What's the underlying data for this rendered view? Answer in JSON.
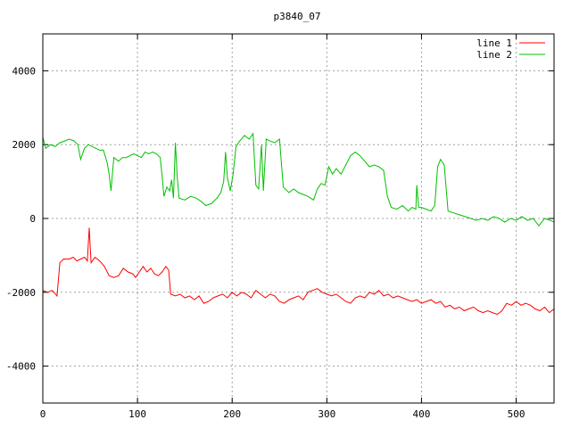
{
  "chart_data": {
    "type": "line",
    "title": "p3840_07",
    "xlabel": "",
    "ylabel": "",
    "xlim": [
      0,
      540
    ],
    "ylim": [
      -5000,
      5000
    ],
    "x_ticks": [
      0,
      100,
      200,
      300,
      400,
      500
    ],
    "y_ticks": [
      -4000,
      -2000,
      0,
      2000,
      4000
    ],
    "grid": true,
    "legend_position": "top-right",
    "series": [
      {
        "name": "line 1",
        "color": "#ff0000",
        "points": [
          [
            0,
            -1950
          ],
          [
            5,
            -2000
          ],
          [
            10,
            -1950
          ],
          [
            15,
            -2100
          ],
          [
            18,
            -1200
          ],
          [
            22,
            -1100
          ],
          [
            28,
            -1100
          ],
          [
            32,
            -1050
          ],
          [
            36,
            -1150
          ],
          [
            40,
            -1100
          ],
          [
            44,
            -1050
          ],
          [
            47,
            -1150
          ],
          [
            49,
            -250
          ],
          [
            51,
            -1200
          ],
          [
            55,
            -1050
          ],
          [
            60,
            -1150
          ],
          [
            65,
            -1300
          ],
          [
            70,
            -1550
          ],
          [
            75,
            -1600
          ],
          [
            80,
            -1550
          ],
          [
            85,
            -1350
          ],
          [
            90,
            -1450
          ],
          [
            95,
            -1500
          ],
          [
            98,
            -1600
          ],
          [
            102,
            -1450
          ],
          [
            106,
            -1300
          ],
          [
            110,
            -1450
          ],
          [
            114,
            -1350
          ],
          [
            118,
            -1500
          ],
          [
            122,
            -1550
          ],
          [
            126,
            -1450
          ],
          [
            130,
            -1300
          ],
          [
            133,
            -1400
          ],
          [
            135,
            -2050
          ],
          [
            140,
            -2100
          ],
          [
            145,
            -2050
          ],
          [
            150,
            -2150
          ],
          [
            155,
            -2100
          ],
          [
            160,
            -2200
          ],
          [
            165,
            -2100
          ],
          [
            170,
            -2300
          ],
          [
            175,
            -2250
          ],
          [
            180,
            -2150
          ],
          [
            185,
            -2100
          ],
          [
            190,
            -2050
          ],
          [
            195,
            -2150
          ],
          [
            200,
            -2000
          ],
          [
            205,
            -2100
          ],
          [
            210,
            -2000
          ],
          [
            215,
            -2050
          ],
          [
            220,
            -2150
          ],
          [
            225,
            -1950
          ],
          [
            230,
            -2050
          ],
          [
            235,
            -2150
          ],
          [
            240,
            -2050
          ],
          [
            245,
            -2100
          ],
          [
            250,
            -2250
          ],
          [
            255,
            -2300
          ],
          [
            260,
            -2200
          ],
          [
            265,
            -2150
          ],
          [
            270,
            -2100
          ],
          [
            275,
            -2200
          ],
          [
            280,
            -2000
          ],
          [
            285,
            -1950
          ],
          [
            290,
            -1900
          ],
          [
            295,
            -2000
          ],
          [
            300,
            -2050
          ],
          [
            305,
            -2100
          ],
          [
            310,
            -2050
          ],
          [
            315,
            -2150
          ],
          [
            320,
            -2250
          ],
          [
            325,
            -2300
          ],
          [
            330,
            -2150
          ],
          [
            335,
            -2100
          ],
          [
            340,
            -2150
          ],
          [
            345,
            -2000
          ],
          [
            350,
            -2050
          ],
          [
            355,
            -1950
          ],
          [
            360,
            -2100
          ],
          [
            365,
            -2050
          ],
          [
            370,
            -2150
          ],
          [
            375,
            -2100
          ],
          [
            380,
            -2150
          ],
          [
            385,
            -2200
          ],
          [
            390,
            -2250
          ],
          [
            395,
            -2200
          ],
          [
            400,
            -2300
          ],
          [
            405,
            -2250
          ],
          [
            410,
            -2200
          ],
          [
            415,
            -2300
          ],
          [
            420,
            -2250
          ],
          [
            425,
            -2400
          ],
          [
            430,
            -2350
          ],
          [
            435,
            -2450
          ],
          [
            440,
            -2400
          ],
          [
            445,
            -2500
          ],
          [
            450,
            -2450
          ],
          [
            455,
            -2400
          ],
          [
            460,
            -2500
          ],
          [
            465,
            -2550
          ],
          [
            470,
            -2500
          ],
          [
            475,
            -2550
          ],
          [
            480,
            -2600
          ],
          [
            485,
            -2500
          ],
          [
            490,
            -2300
          ],
          [
            495,
            -2350
          ],
          [
            500,
            -2250
          ],
          [
            505,
            -2350
          ],
          [
            510,
            -2300
          ],
          [
            515,
            -2350
          ],
          [
            520,
            -2450
          ],
          [
            525,
            -2500
          ],
          [
            530,
            -2400
          ],
          [
            535,
            -2550
          ],
          [
            540,
            -2450
          ]
        ]
      },
      {
        "name": "line 2",
        "color": "#00c000",
        "points": [
          [
            0,
            2200
          ],
          [
            3,
            1900
          ],
          [
            8,
            2000
          ],
          [
            13,
            1950
          ],
          [
            18,
            2050
          ],
          [
            23,
            2100
          ],
          [
            28,
            2150
          ],
          [
            33,
            2100
          ],
          [
            37,
            2000
          ],
          [
            40,
            1600
          ],
          [
            44,
            1900
          ],
          [
            48,
            2000
          ],
          [
            52,
            1950
          ],
          [
            56,
            1900
          ],
          [
            60,
            1850
          ],
          [
            64,
            1850
          ],
          [
            68,
            1500
          ],
          [
            70,
            1200
          ],
          [
            72,
            750
          ],
          [
            75,
            1650
          ],
          [
            80,
            1550
          ],
          [
            84,
            1650
          ],
          [
            88,
            1650
          ],
          [
            92,
            1700
          ],
          [
            96,
            1750
          ],
          [
            100,
            1700
          ],
          [
            104,
            1650
          ],
          [
            108,
            1800
          ],
          [
            112,
            1750
          ],
          [
            116,
            1800
          ],
          [
            120,
            1750
          ],
          [
            124,
            1650
          ],
          [
            126,
            1150
          ],
          [
            128,
            600
          ],
          [
            131,
            850
          ],
          [
            134,
            750
          ],
          [
            136,
            1050
          ],
          [
            138,
            550
          ],
          [
            140,
            2050
          ],
          [
            142,
            1100
          ],
          [
            144,
            550
          ],
          [
            150,
            500
          ],
          [
            156,
            600
          ],
          [
            162,
            550
          ],
          [
            168,
            450
          ],
          [
            172,
            350
          ],
          [
            178,
            400
          ],
          [
            184,
            550
          ],
          [
            188,
            700
          ],
          [
            191,
            1000
          ],
          [
            193,
            1800
          ],
          [
            195,
            1100
          ],
          [
            198,
            750
          ],
          [
            201,
            1200
          ],
          [
            204,
            1950
          ],
          [
            208,
            2100
          ],
          [
            213,
            2250
          ],
          [
            218,
            2150
          ],
          [
            222,
            2300
          ],
          [
            225,
            900
          ],
          [
            228,
            800
          ],
          [
            231,
            2000
          ],
          [
            233,
            750
          ],
          [
            236,
            2150
          ],
          [
            240,
            2100
          ],
          [
            245,
            2050
          ],
          [
            250,
            2150
          ],
          [
            254,
            850
          ],
          [
            260,
            700
          ],
          [
            265,
            800
          ],
          [
            270,
            700
          ],
          [
            275,
            650
          ],
          [
            280,
            600
          ],
          [
            286,
            500
          ],
          [
            290,
            800
          ],
          [
            294,
            950
          ],
          [
            298,
            900
          ],
          [
            302,
            1400
          ],
          [
            306,
            1200
          ],
          [
            310,
            1350
          ],
          [
            315,
            1200
          ],
          [
            320,
            1450
          ],
          [
            325,
            1700
          ],
          [
            330,
            1800
          ],
          [
            335,
            1700
          ],
          [
            340,
            1550
          ],
          [
            345,
            1400
          ],
          [
            350,
            1450
          ],
          [
            355,
            1400
          ],
          [
            360,
            1300
          ],
          [
            364,
            600
          ],
          [
            368,
            300
          ],
          [
            374,
            250
          ],
          [
            380,
            350
          ],
          [
            386,
            200
          ],
          [
            390,
            300
          ],
          [
            394,
            250
          ],
          [
            395,
            900
          ],
          [
            397,
            300
          ],
          [
            400,
            300
          ],
          [
            405,
            250
          ],
          [
            410,
            200
          ],
          [
            414,
            350
          ],
          [
            417,
            1400
          ],
          [
            420,
            1600
          ],
          [
            424,
            1450
          ],
          [
            428,
            200
          ],
          [
            434,
            150
          ],
          [
            440,
            100
          ],
          [
            446,
            50
          ],
          [
            452,
            0
          ],
          [
            458,
            -50
          ],
          [
            464,
            0
          ],
          [
            470,
            -50
          ],
          [
            476,
            50
          ],
          [
            482,
            0
          ],
          [
            488,
            -100
          ],
          [
            494,
            0
          ],
          [
            500,
            -50
          ],
          [
            506,
            50
          ],
          [
            512,
            -50
          ],
          [
            518,
            0
          ],
          [
            524,
            -200
          ],
          [
            530,
            0
          ],
          [
            536,
            -50
          ],
          [
            540,
            -100
          ]
        ]
      }
    ]
  }
}
